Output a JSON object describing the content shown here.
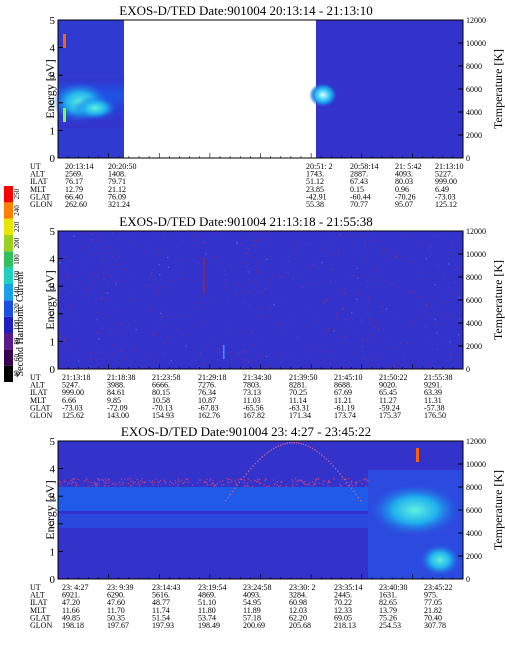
{
  "colorbar": {
    "label": "Second Harmonic Current",
    "ticks": [
      "40",
      "60",
      "80",
      "100",
      "120",
      "140",
      "160",
      "180",
      "200",
      "220",
      "240",
      "250"
    ],
    "colors": [
      "#000000",
      "#3a0050",
      "#5a1a8c",
      "#2020c0",
      "#1a4fe0",
      "#1aa0e8",
      "#20d0c0",
      "#30c060",
      "#9ad020",
      "#e6e600",
      "#ff8000",
      "#ff0000"
    ]
  },
  "background_color": "#3333cc",
  "chart_data": [
    {
      "type": "heatmap",
      "title": "EXOS-D/TED   Date:901004  20:13:14 - 21:13:10",
      "ylabel": "Energy [eV]",
      "y2label": "Temperature [K]",
      "ylim": [
        0,
        5
      ],
      "y2lim": [
        0,
        12000
      ],
      "yticks": [
        "0",
        "1",
        "2",
        "3",
        "4",
        "5"
      ],
      "y2ticks": [
        "0",
        "2000",
        "4000",
        "6000",
        "8000",
        "10000",
        "12000"
      ],
      "data_gap": {
        "from": "20:20:50",
        "to": "20:51: 2"
      },
      "table_labels": [
        "UT",
        "ALT",
        "ILAT",
        "MLT",
        "GLAT",
        "GLON"
      ],
      "table_columns": [
        [
          "20:13:14",
          "2569.",
          "76.17",
          "12.79",
          "66.40",
          "262.60"
        ],
        [
          "20:20:50",
          "1408.",
          "79.71",
          "21.12",
          "76.09",
          "321.24"
        ],
        [
          "20:51: 2",
          "1743.",
          "51.12",
          "23.85",
          "-42.91",
          "55.38"
        ],
        [
          "20:58:14",
          "2887.",
          "67.43",
          "0.15",
          "-60.44",
          "70.77"
        ],
        [
          "21: 5:42",
          "4093.",
          "80.03",
          "0.96",
          "-70.26",
          "95.07"
        ],
        [
          "21:13:10",
          "5227.",
          "999.00",
          "6.49",
          "-73.03",
          "125.12"
        ]
      ]
    },
    {
      "type": "heatmap",
      "title": "EXOS-D/TED   Date:901004  21:13:18 - 21:55:38",
      "ylabel": "Energy [eV]",
      "y2label": "Temperature [K]",
      "ylim": [
        0,
        5
      ],
      "y2lim": [
        0,
        12000
      ],
      "yticks": [
        "0",
        "1",
        "2",
        "3",
        "4",
        "5"
      ],
      "y2ticks": [
        "0",
        "2000",
        "4000",
        "6000",
        "8000",
        "10000",
        "12000"
      ],
      "table_labels": [
        "UT",
        "ALT",
        "ILAT",
        "MLT",
        "GLAT",
        "GLON"
      ],
      "table_columns": [
        [
          "21:13:18",
          "5247.",
          "999.00",
          "6.66",
          "-73.03",
          "125.62"
        ],
        [
          "21:18:38",
          "3988.",
          "84.61",
          "9.85",
          "-72.09",
          "143.00"
        ],
        [
          "21:23:58",
          "6666.",
          "80.15",
          "10.58",
          "-70.13",
          "154.93"
        ],
        [
          "21:29:18",
          "7276.",
          "76.34",
          "10.87",
          "-67.83",
          "162.76"
        ],
        [
          "21:34:30",
          "7803.",
          "73.13",
          "11.03",
          "-65.56",
          "167.82"
        ],
        [
          "21:39:50",
          "8281.",
          "70.25",
          "11.14",
          "-63.31",
          "171.34"
        ],
        [
          "21:45:10",
          "8688.",
          "67.69",
          "11.21",
          "-61.19",
          "173.74"
        ],
        [
          "21:50:22",
          "9020.",
          "65.45",
          "11.27",
          "-59.24",
          "175.37"
        ],
        [
          "21:55:38",
          "9291.",
          "63.39",
          "11.31",
          "-57.38",
          "176.50"
        ]
      ]
    },
    {
      "type": "heatmap",
      "title": "EXOS-D/TED   Date:901004  23: 4:27 - 23:45:22",
      "ylabel": "Energy [eV]",
      "y2label": "Temperature [K]",
      "ylim": [
        0,
        5
      ],
      "y2lim": [
        0,
        12000
      ],
      "yticks": [
        "0",
        "1",
        "2",
        "3",
        "4",
        "5"
      ],
      "y2ticks": [
        "0",
        "2000",
        "4000",
        "6000",
        "8000",
        "10000",
        "12000"
      ],
      "table_labels": [
        "UT",
        "ALT",
        "ILAT",
        "MLT",
        "GLAT",
        "GLON"
      ],
      "table_columns": [
        [
          "23: 4:27",
          "6921.",
          "47.20",
          "11.66",
          "49.85",
          "198.18"
        ],
        [
          "23: 9:39",
          "6290.",
          "47.60",
          "11.70",
          "50.35",
          "197.67"
        ],
        [
          "23:14:43",
          "5616.",
          "48.77",
          "11.74",
          "51.54",
          "197.93"
        ],
        [
          "23:19:54",
          "4869.",
          "51.10",
          "11.80",
          "53.74",
          "198.49"
        ],
        [
          "23:24:58",
          "4093.",
          "54.95",
          "11.89",
          "57.18",
          "200.69"
        ],
        [
          "23:30: 2",
          "3284.",
          "60.98",
          "12.03",
          "62.20",
          "205.68"
        ],
        [
          "23:35:14",
          "2445.",
          "70.22",
          "12.33",
          "69.05",
          "218.13"
        ],
        [
          "23:40:30",
          "1631.",
          "82.65",
          "13.79",
          "75.26",
          "254.53"
        ],
        [
          "23:45:22",
          "975.",
          "77.05",
          "21.82",
          "70.40",
          "307.78"
        ]
      ]
    }
  ]
}
